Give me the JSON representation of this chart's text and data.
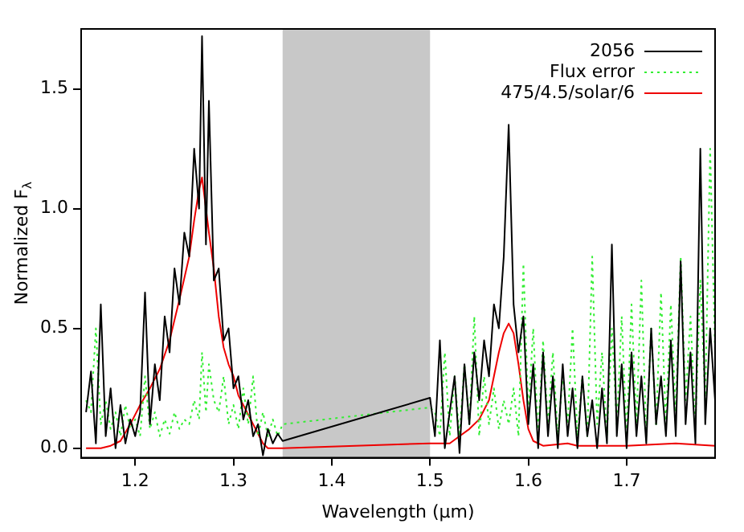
{
  "chart_data": {
    "type": "line",
    "xlabel": "Wavelength (μm)",
    "ylabel": "Normalized F$_{λ}$",
    "xlim": [
      1.145,
      1.79
    ],
    "ylim": [
      -0.04,
      1.75
    ],
    "xticks": [
      1.2,
      1.3,
      1.4,
      1.5,
      1.6,
      1.7
    ],
    "yticks": [
      {
        "value": 0,
        "label": "0.0"
      },
      0.5,
      {
        "value": 1,
        "label": "1.0"
      },
      1.5
    ],
    "grid": false,
    "legend": "top right",
    "marker": "none",
    "bands": [
      {
        "axis": "x",
        "from": 1.35,
        "to": 1.5,
        "color": "#c8c8c8"
      }
    ],
    "series": [
      {
        "name": "2056",
        "color": "#000000",
        "line_style": "solid",
        "x": [
          1.15,
          1.155,
          1.16,
          1.165,
          1.17,
          1.175,
          1.18,
          1.185,
          1.19,
          1.195,
          1.2,
          1.205,
          1.21,
          1.215,
          1.22,
          1.225,
          1.23,
          1.235,
          1.24,
          1.245,
          1.25,
          1.255,
          1.26,
          1.265,
          1.268,
          1.272,
          1.275,
          1.28,
          1.285,
          1.29,
          1.295,
          1.3,
          1.305,
          1.31,
          1.315,
          1.32,
          1.325,
          1.33,
          1.335,
          1.34,
          1.345,
          1.35,
          1.5,
          1.505,
          1.51,
          1.515,
          1.52,
          1.525,
          1.53,
          1.535,
          1.54,
          1.545,
          1.55,
          1.555,
          1.56,
          1.565,
          1.57,
          1.575,
          1.58,
          1.585,
          1.59,
          1.595,
          1.6,
          1.605,
          1.61,
          1.615,
          1.62,
          1.625,
          1.63,
          1.635,
          1.64,
          1.645,
          1.65,
          1.655,
          1.66,
          1.665,
          1.67,
          1.675,
          1.68,
          1.685,
          1.69,
          1.695,
          1.7,
          1.705,
          1.71,
          1.715,
          1.72,
          1.725,
          1.73,
          1.735,
          1.74,
          1.745,
          1.75,
          1.755,
          1.76,
          1.765,
          1.77,
          1.775,
          1.78,
          1.785,
          1.79
        ],
        "values": [
          0.15,
          0.32,
          0.02,
          0.6,
          0.05,
          0.25,
          0.0,
          0.18,
          0.02,
          0.12,
          0.05,
          0.15,
          0.65,
          0.1,
          0.35,
          0.2,
          0.55,
          0.4,
          0.75,
          0.6,
          0.9,
          0.8,
          1.25,
          1.0,
          1.72,
          0.85,
          1.45,
          0.7,
          0.75,
          0.45,
          0.5,
          0.25,
          0.3,
          0.12,
          0.2,
          0.05,
          0.1,
          -0.03,
          0.08,
          0.02,
          0.06,
          0.03,
          0.21,
          0.05,
          0.45,
          0.0,
          0.15,
          0.3,
          -0.02,
          0.35,
          0.1,
          0.4,
          0.2,
          0.45,
          0.3,
          0.6,
          0.5,
          0.8,
          1.35,
          0.6,
          0.4,
          0.55,
          0.1,
          0.35,
          0.0,
          0.4,
          0.05,
          0.3,
          0.0,
          0.35,
          0.05,
          0.25,
          0.0,
          0.3,
          0.05,
          0.2,
          0.0,
          0.25,
          0.02,
          0.85,
          0.05,
          0.35,
          0.0,
          0.4,
          0.05,
          0.3,
          0.02,
          0.5,
          0.1,
          0.3,
          0.05,
          0.45,
          0.05,
          0.78,
          0.1,
          0.4,
          0.02,
          1.25,
          0.1,
          0.5,
          0.2
        ]
      },
      {
        "name": "Flux error",
        "color": "#33ee33",
        "line_style": "dotted",
        "x": [
          1.15,
          1.155,
          1.16,
          1.165,
          1.17,
          1.175,
          1.18,
          1.185,
          1.19,
          1.195,
          1.2,
          1.205,
          1.21,
          1.215,
          1.22,
          1.225,
          1.23,
          1.235,
          1.24,
          1.245,
          1.25,
          1.255,
          1.26,
          1.265,
          1.268,
          1.272,
          1.275,
          1.28,
          1.285,
          1.29,
          1.295,
          1.3,
          1.305,
          1.31,
          1.315,
          1.32,
          1.325,
          1.33,
          1.335,
          1.34,
          1.345,
          1.35,
          1.5,
          1.505,
          1.51,
          1.515,
          1.52,
          1.525,
          1.53,
          1.535,
          1.54,
          1.545,
          1.55,
          1.555,
          1.56,
          1.565,
          1.57,
          1.575,
          1.58,
          1.585,
          1.59,
          1.595,
          1.6,
          1.605,
          1.61,
          1.615,
          1.62,
          1.625,
          1.63,
          1.635,
          1.64,
          1.645,
          1.65,
          1.655,
          1.66,
          1.665,
          1.67,
          1.675,
          1.68,
          1.685,
          1.69,
          1.695,
          1.7,
          1.705,
          1.71,
          1.715,
          1.72,
          1.725,
          1.73,
          1.735,
          1.74,
          1.745,
          1.75,
          1.755,
          1.76,
          1.765,
          1.77,
          1.775,
          1.78,
          1.785,
          1.79
        ],
        "values": [
          0.2,
          0.15,
          0.5,
          0.1,
          0.2,
          0.08,
          0.15,
          0.05,
          0.18,
          0.08,
          0.12,
          0.05,
          0.3,
          0.08,
          0.15,
          0.05,
          0.12,
          0.06,
          0.15,
          0.08,
          0.12,
          0.1,
          0.2,
          0.12,
          0.4,
          0.15,
          0.35,
          0.2,
          0.15,
          0.3,
          0.1,
          0.18,
          0.08,
          0.25,
          0.1,
          0.3,
          0.05,
          0.15,
          0.05,
          0.12,
          0.05,
          0.1,
          0.17,
          0.15,
          0.05,
          0.4,
          0.05,
          0.3,
          0.05,
          0.35,
          0.1,
          0.55,
          0.05,
          0.3,
          0.1,
          0.25,
          0.08,
          0.2,
          0.1,
          0.25,
          0.05,
          0.77,
          0.15,
          0.5,
          0.05,
          0.45,
          0.1,
          0.4,
          0.05,
          0.3,
          0.1,
          0.5,
          0.05,
          0.3,
          0.05,
          0.8,
          0.1,
          0.4,
          0.05,
          0.5,
          0.1,
          0.55,
          0.05,
          0.6,
          0.1,
          0.7,
          0.05,
          0.5,
          0.1,
          0.65,
          0.1,
          0.6,
          0.15,
          0.8,
          0.2,
          0.55,
          0.1,
          0.7,
          0.2,
          1.25,
          0.4
        ]
      },
      {
        "name": "475/4.5/solar/6",
        "color": "#ee0000",
        "line_style": "solid",
        "x": [
          1.15,
          1.165,
          1.175,
          1.185,
          1.195,
          1.205,
          1.215,
          1.225,
          1.235,
          1.245,
          1.255,
          1.26,
          1.265,
          1.268,
          1.272,
          1.275,
          1.28,
          1.285,
          1.29,
          1.295,
          1.3,
          1.305,
          1.31,
          1.315,
          1.32,
          1.325,
          1.33,
          1.335,
          1.35,
          1.5,
          1.505,
          1.52,
          1.53,
          1.54,
          1.55,
          1.56,
          1.565,
          1.57,
          1.575,
          1.58,
          1.585,
          1.59,
          1.595,
          1.6,
          1.605,
          1.615,
          1.64,
          1.65,
          1.7,
          1.75,
          1.79
        ],
        "values": [
          0.0,
          0.0,
          0.01,
          0.03,
          0.1,
          0.18,
          0.25,
          0.33,
          0.45,
          0.62,
          0.8,
          0.95,
          1.08,
          1.13,
          1.0,
          0.9,
          0.75,
          0.55,
          0.42,
          0.35,
          0.3,
          0.22,
          0.18,
          0.14,
          0.1,
          0.06,
          0.02,
          0.0,
          0.0,
          0.02,
          0.02,
          0.02,
          0.05,
          0.08,
          0.12,
          0.2,
          0.3,
          0.4,
          0.48,
          0.52,
          0.48,
          0.35,
          0.2,
          0.08,
          0.03,
          0.01,
          0.02,
          0.01,
          0.01,
          0.02,
          0.01
        ]
      }
    ]
  }
}
